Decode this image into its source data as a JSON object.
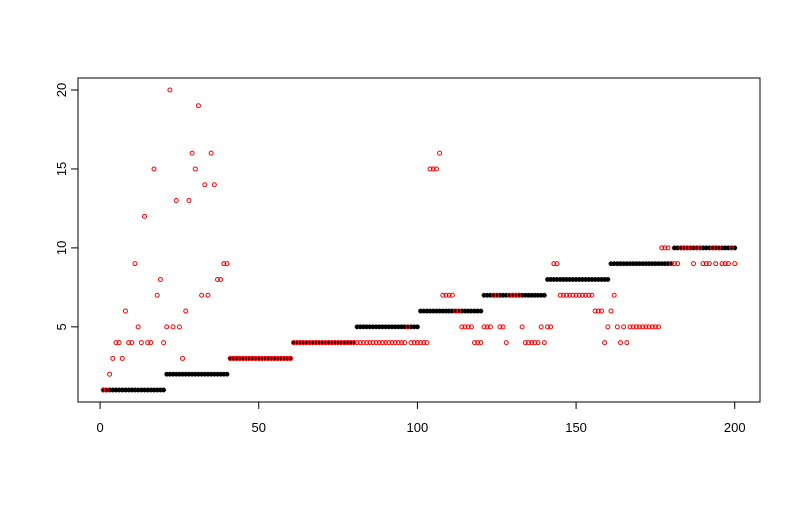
{
  "chart_data": {
    "type": "scatter",
    "x": [
      1,
      2,
      3,
      4,
      5,
      6,
      7,
      8,
      9,
      10,
      11,
      12,
      13,
      14,
      15,
      16,
      17,
      18,
      19,
      20,
      21,
      22,
      23,
      24,
      25,
      26,
      27,
      28,
      29,
      30,
      31,
      32,
      33,
      34,
      35,
      36,
      37,
      38,
      39,
      40,
      41,
      42,
      43,
      44,
      45,
      46,
      47,
      48,
      49,
      50,
      51,
      52,
      53,
      54,
      55,
      56,
      57,
      58,
      59,
      60,
      61,
      62,
      63,
      64,
      65,
      66,
      67,
      68,
      69,
      70,
      71,
      72,
      73,
      74,
      75,
      76,
      77,
      78,
      79,
      80,
      81,
      82,
      83,
      84,
      85,
      86,
      87,
      88,
      89,
      90,
      91,
      92,
      93,
      94,
      95,
      96,
      97,
      98,
      99,
      100,
      101,
      102,
      103,
      104,
      105,
      106,
      107,
      108,
      109,
      110,
      111,
      112,
      113,
      114,
      115,
      116,
      117,
      118,
      119,
      120,
      121,
      122,
      123,
      124,
      125,
      126,
      127,
      128,
      129,
      130,
      131,
      132,
      133,
      134,
      135,
      136,
      137,
      138,
      139,
      140,
      141,
      142,
      143,
      144,
      145,
      146,
      147,
      148,
      149,
      150,
      151,
      152,
      153,
      154,
      155,
      156,
      157,
      158,
      159,
      160,
      161,
      162,
      163,
      164,
      165,
      166,
      167,
      168,
      169,
      170,
      171,
      172,
      173,
      174,
      175,
      176,
      177,
      178,
      179,
      180,
      181,
      182,
      183,
      184,
      185,
      186,
      187,
      188,
      189,
      190,
      191,
      192,
      193,
      194,
      195,
      196,
      197,
      198,
      199,
      200
    ],
    "series": [
      {
        "color": "#000000",
        "filled": true,
        "values": [
          1,
          1,
          1,
          1,
          1,
          1,
          1,
          1,
          1,
          1,
          1,
          1,
          1,
          1,
          1,
          1,
          1,
          1,
          1,
          1,
          2,
          2,
          2,
          2,
          2,
          2,
          2,
          2,
          2,
          2,
          2,
          2,
          2,
          2,
          2,
          2,
          2,
          2,
          2,
          2,
          3,
          3,
          3,
          3,
          3,
          3,
          3,
          3,
          3,
          3,
          3,
          3,
          3,
          3,
          3,
          3,
          3,
          3,
          3,
          3,
          4,
          4,
          4,
          4,
          4,
          4,
          4,
          4,
          4,
          4,
          4,
          4,
          4,
          4,
          4,
          4,
          4,
          4,
          4,
          4,
          5,
          5,
          5,
          5,
          5,
          5,
          5,
          5,
          5,
          5,
          5,
          5,
          5,
          5,
          5,
          5,
          5,
          5,
          5,
          5,
          6,
          6,
          6,
          6,
          6,
          6,
          6,
          6,
          6,
          6,
          6,
          6,
          6,
          6,
          6,
          6,
          6,
          6,
          6,
          6,
          7,
          7,
          7,
          7,
          7,
          7,
          7,
          7,
          7,
          7,
          7,
          7,
          7,
          7,
          7,
          7,
          7,
          7,
          7,
          7,
          8,
          8,
          8,
          8,
          8,
          8,
          8,
          8,
          8,
          8,
          8,
          8,
          8,
          8,
          8,
          8,
          8,
          8,
          8,
          8,
          9,
          9,
          9,
          9,
          9,
          9,
          9,
          9,
          9,
          9,
          9,
          9,
          9,
          9,
          9,
          9,
          9,
          9,
          9,
          9,
          10,
          10,
          10,
          10,
          10,
          10,
          10,
          10,
          10,
          10,
          10,
          10,
          10,
          10,
          10,
          10,
          10,
          10,
          10,
          10
        ]
      },
      {
        "color": "#ff0000",
        "filled": false,
        "values": [
          1,
          1,
          2,
          3,
          4,
          4,
          3,
          6,
          4,
          4,
          9,
          5,
          4,
          12,
          4,
          4,
          15,
          7,
          8,
          4,
          5,
          20,
          5,
          13,
          5,
          3,
          6,
          13,
          16,
          15,
          19,
          7,
          14,
          7,
          16,
          14,
          8,
          8,
          9,
          9,
          3,
          3,
          3,
          3,
          3,
          3,
          3,
          3,
          3,
          3,
          3,
          3,
          3,
          3,
          3,
          3,
          3,
          3,
          3,
          3,
          4,
          4,
          4,
          4,
          4,
          4,
          4,
          4,
          4,
          4,
          4,
          4,
          4,
          4,
          4,
          4,
          4,
          4,
          4,
          4,
          4,
          4,
          4,
          4,
          4,
          4,
          4,
          4,
          4,
          4,
          4,
          4,
          4,
          4,
          4,
          4,
          5,
          4,
          4,
          4,
          4,
          4,
          4,
          15,
          15,
          15,
          16,
          7,
          7,
          7,
          7,
          6,
          6,
          5,
          5,
          5,
          5,
          4,
          4,
          4,
          5,
          5,
          5,
          7,
          7,
          5,
          5,
          4,
          7,
          7,
          7,
          7,
          5,
          4,
          4,
          4,
          4,
          4,
          5,
          4,
          5,
          5,
          9,
          9,
          7,
          7,
          7,
          7,
          7,
          7,
          7,
          7,
          7,
          7,
          7,
          6,
          6,
          6,
          4,
          5,
          6,
          7,
          5,
          4,
          5,
          4,
          5,
          5,
          5,
          5,
          5,
          5,
          5,
          5,
          5,
          5,
          10,
          10,
          10,
          9,
          9,
          9,
          10,
          10,
          10,
          10,
          9,
          10,
          10,
          9,
          9,
          9,
          10,
          9,
          10,
          9,
          9,
          9,
          10,
          9
        ]
      }
    ],
    "xlim": [
      -6.96,
      207.96
    ],
    "ylim": [
      0.24,
      20.76
    ],
    "xticks": [
      0,
      50,
      100,
      150,
      200
    ],
    "yticks": [
      5,
      10,
      15,
      20
    ]
  }
}
